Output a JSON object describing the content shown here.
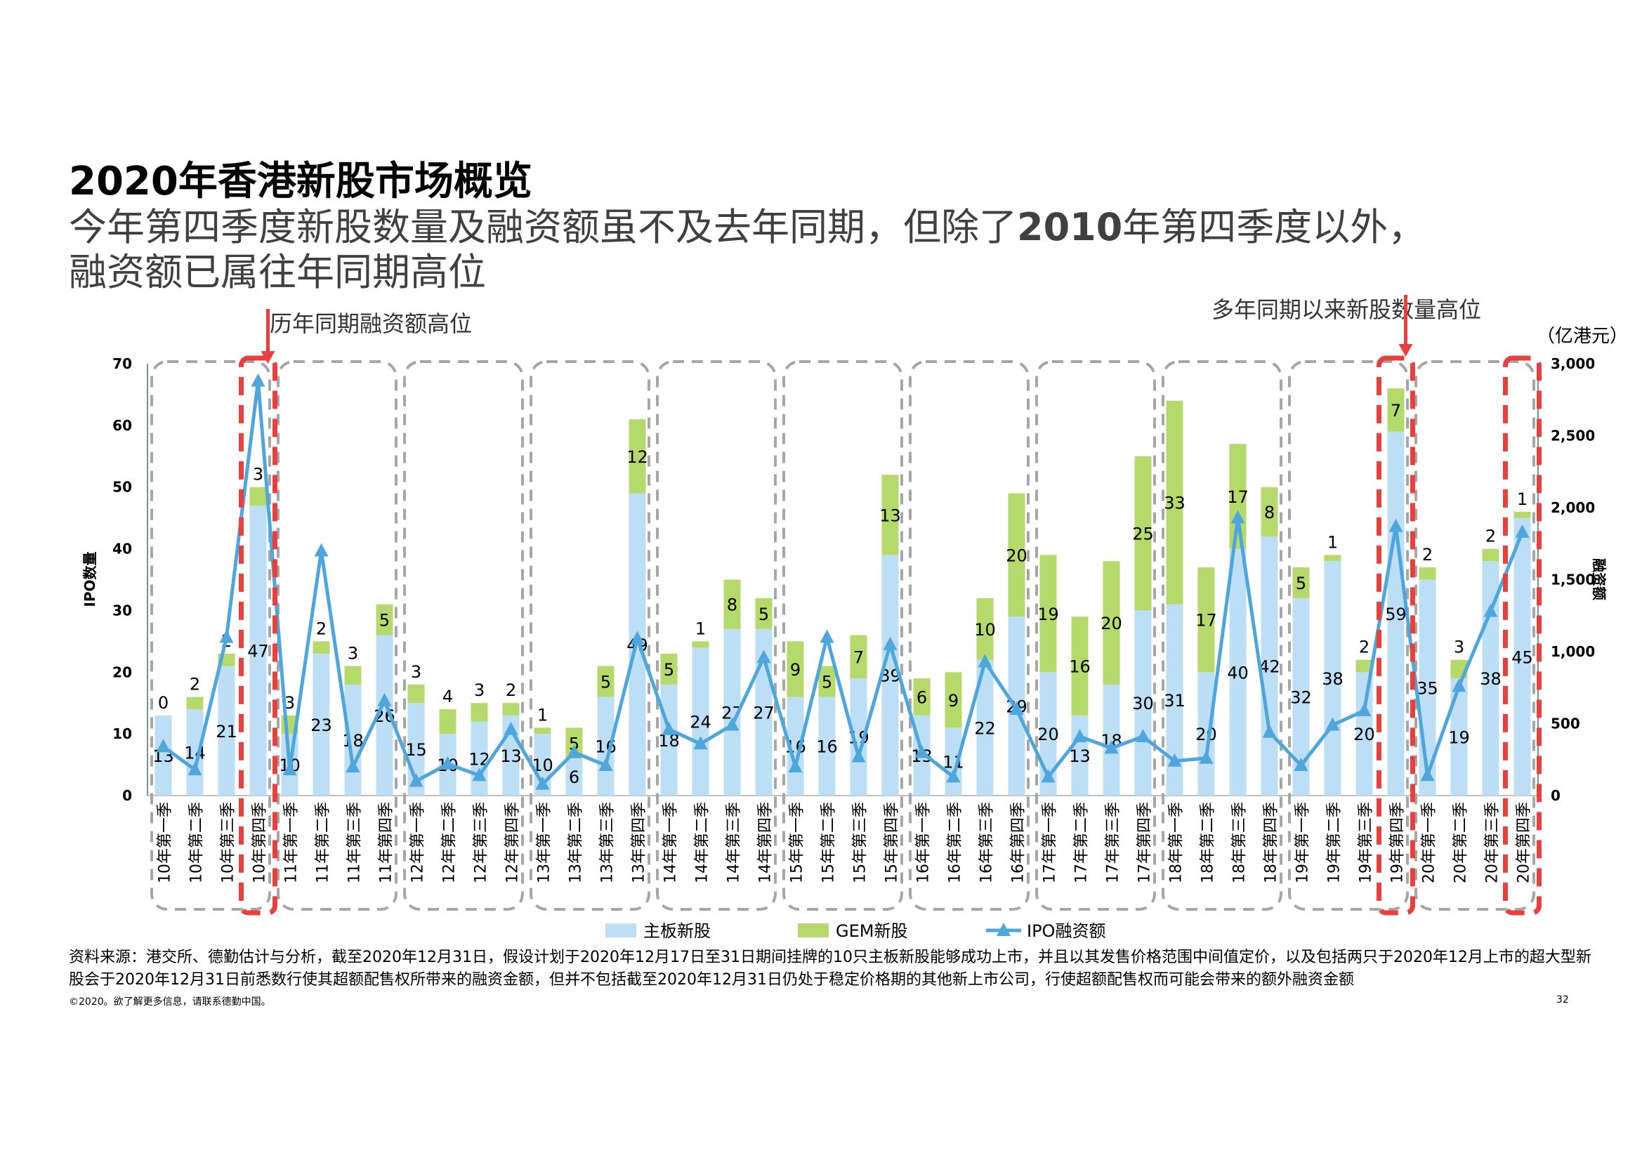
{
  "page": {
    "title": "2020年香港新股市场概览",
    "subtitle_line1_a": "今年第四季度新股数量及融资额虽不及去年同期，但除了",
    "subtitle_line1_b": "2010",
    "subtitle_line1_c": "年第四季度以外，",
    "subtitle_line2": "融资额已属往年同期高位",
    "annotation_left": "历年同期融资额高位",
    "annotation_right": "多年同期以来新股数量高位",
    "unit_label": "（亿港元）",
    "source": "资料来源：港交所、德勤估计与分析，截至2020年12月31日，假设计划于2020年12月17日至31日期间挂牌的10只主板新股能够成功上市，并且以其发售价格范围中间值定价，以及包括两只于2020年12月上市的超大型新股会于2020年12月31日前悉数行使其超额配售权所带来的融资金额，但并不包括截至2020年12月31日仍处于稳定价格期的其他新上市公司，行使超额配售权而可能会带来的额外融资金额",
    "copyright": "©2020。欲了解更多信息，请联系德勤中国。",
    "page_number": "32"
  },
  "colors": {
    "main_board": "#bddff5",
    "gem": "#b5d96a",
    "ipo_line": "#4ea6dc",
    "highlight_box": "#e8403c",
    "group_box": "#a6a6a6"
  },
  "chart_data": {
    "type": "bar",
    "stacked": true,
    "categories": [
      "10年第一季",
      "10年第二季",
      "10年第三季",
      "10年第四季",
      "11年第一季",
      "11年第二季",
      "11年第三季",
      "11年第四季",
      "12年第一季",
      "12年第二季",
      "12年第三季",
      "12年第四季",
      "13年第一季",
      "13年第二季",
      "13年第三季",
      "13年第四季",
      "14年第一季",
      "14年第二季",
      "14年第三季",
      "14年第四季",
      "15年第一季",
      "15年第二季",
      "15年第三季",
      "15年第四季",
      "16年第一季",
      "16年第二季",
      "16年第三季",
      "16年第四季",
      "17年第一季",
      "17年第二季",
      "17年第三季",
      "17年第四季",
      "18年第一季",
      "18年第二季",
      "18年第三季",
      "18年第四季",
      "19年第一季",
      "19年第二季",
      "19年第三季",
      "19年第四季",
      "20年第一季",
      "20年第二季",
      "20年第三季",
      "20年第四季"
    ],
    "series": [
      {
        "name": "主板新股",
        "type": "bar",
        "axis": "left",
        "values": [
          13,
          14,
          21,
          47,
          10,
          23,
          18,
          26,
          15,
          10,
          12,
          13,
          10,
          6,
          16,
          49,
          18,
          24,
          27,
          27,
          16,
          16,
          19,
          39,
          13,
          11,
          22,
          29,
          20,
          13,
          18,
          30,
          31,
          20,
          40,
          42,
          32,
          38,
          20,
          59,
          35,
          19,
          38,
          45
        ]
      },
      {
        "name": "GEM新股",
        "type": "bar",
        "axis": "left",
        "values": [
          0,
          2,
          2,
          3,
          3,
          2,
          3,
          5,
          3,
          4,
          3,
          2,
          1,
          5,
          5,
          12,
          5,
          1,
          8,
          5,
          9,
          5,
          7,
          13,
          6,
          9,
          10,
          20,
          19,
          16,
          20,
          25,
          33,
          17,
          17,
          8,
          5,
          1,
          2,
          7,
          2,
          3,
          2,
          1
        ]
      },
      {
        "name": "IPO融资额",
        "type": "line",
        "axis": "right",
        "values": [
          340,
          180,
          1100,
          2880,
          180,
          1700,
          200,
          660,
          100,
          220,
          140,
          460,
          80,
          300,
          210,
          1090,
          460,
          360,
          490,
          960,
          200,
          1100,
          270,
          1050,
          300,
          130,
          930,
          600,
          130,
          410,
          330,
          410,
          240,
          260,
          1930,
          440,
          210,
          490,
          590,
          1870,
          140,
          760,
          1280,
          1830
        ]
      }
    ],
    "ylabel": "IPO数量",
    "ylabel_right": "融资额",
    "ylim": [
      0,
      70
    ],
    "ylim_right": [
      0,
      3000
    ],
    "yticks": [
      "0",
      "10",
      "20",
      "30",
      "40",
      "50",
      "60",
      "70"
    ],
    "yticks_right": [
      "0",
      "500",
      "1,000",
      "1,500",
      "2,000",
      "2,500",
      "3,000"
    ],
    "legend": [
      "主板新股",
      "GEM新股",
      "IPO融资额"
    ],
    "legend_position": "bottom",
    "highlighted_categories": [
      "10年第四季",
      "19年第四季",
      "20年第四季"
    ]
  }
}
